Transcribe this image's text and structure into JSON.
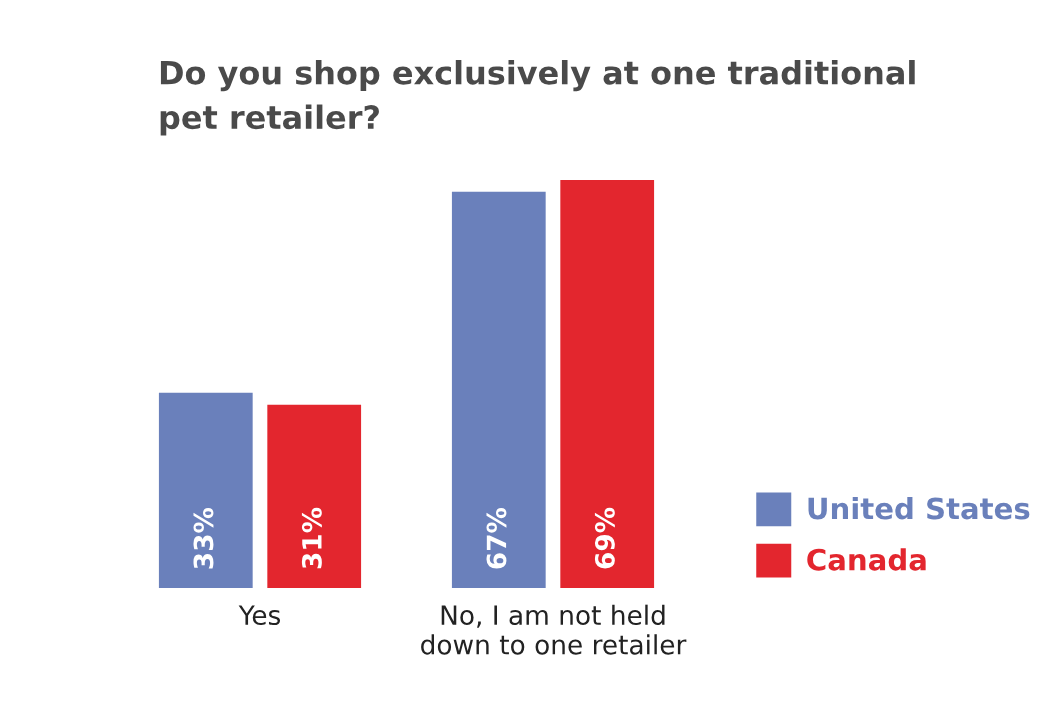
{
  "chart_data": {
    "type": "bar",
    "title": "Do you shop exclusively at one traditional\npet retailer?",
    "categories": [
      "Yes",
      "No, I am not held\ndown to one retailer"
    ],
    "series": [
      {
        "name": "United States",
        "color": "#6a80bb",
        "values": [
          33,
          67
        ],
        "value_labels": [
          "33%",
          "67%"
        ]
      },
      {
        "name": "Canada",
        "color": "#e3262e",
        "values": [
          31,
          69
        ],
        "value_labels": [
          "31%",
          "69%"
        ]
      }
    ],
    "legend": "right",
    "grid": false
  }
}
